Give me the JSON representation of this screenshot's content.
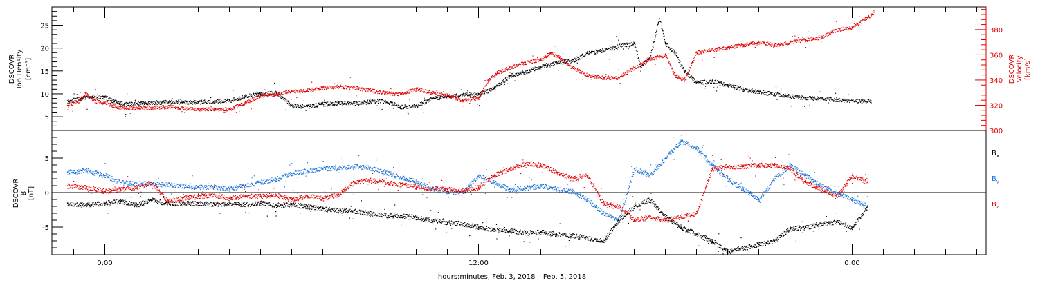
{
  "chart_data": [
    {
      "type": "scatter",
      "panel": "top",
      "ylabel_lines": [
        "DSCOVR",
        "Ion Density",
        "[cm⁻³]"
      ],
      "y2label_lines": [
        "DSCOVR",
        "Velocity",
        "[km/s]"
      ],
      "y_ticks": [
        5,
        10,
        15,
        20,
        25
      ],
      "y2_ticks": [
        300,
        320,
        340,
        360,
        380
      ],
      "ylim": [
        2,
        29
      ],
      "y2lim": [
        300,
        398
      ],
      "series": [
        {
          "color": "#000000",
          "axis": "left",
          "points": [
            [
              -1.2,
              8.5
            ],
            [
              -0.8,
              9.0
            ],
            [
              -0.4,
              9.5
            ],
            [
              0,
              9.3
            ],
            [
              0.3,
              8.3
            ],
            [
              0.7,
              7.8
            ],
            [
              1.2,
              8.0
            ],
            [
              1.8,
              8.2
            ],
            [
              2.5,
              8.3
            ],
            [
              3.0,
              8.2
            ],
            [
              3.5,
              8.4
            ],
            [
              4.0,
              8.6
            ],
            [
              4.5,
              9.5
            ],
            [
              5.0,
              10.0
            ],
            [
              5.5,
              10.3
            ],
            [
              6.0,
              7.5
            ],
            [
              6.5,
              7.3
            ],
            [
              7.0,
              7.8
            ],
            [
              7.5,
              8.0
            ],
            [
              8.0,
              8.0
            ],
            [
              8.5,
              8.3
            ],
            [
              9.0,
              8.5
            ],
            [
              9.5,
              7.2
            ],
            [
              10.0,
              7.5
            ],
            [
              10.5,
              9.0
            ],
            [
              11.0,
              9.5
            ],
            [
              11.5,
              9.8
            ],
            [
              12.0,
              10.0
            ],
            [
              12.5,
              11.2
            ],
            [
              13.0,
              14.0
            ],
            [
              13.5,
              14.8
            ],
            [
              14.0,
              16.0
            ],
            [
              14.5,
              17.0
            ],
            [
              15.0,
              17.2
            ],
            [
              15.5,
              19.0
            ],
            [
              16.0,
              19.5
            ],
            [
              16.5,
              20.5
            ],
            [
              17.0,
              21.0
            ],
            [
              17.2,
              16.0
            ],
            [
              17.5,
              18.0
            ],
            [
              17.8,
              26.5
            ],
            [
              18.0,
              21.0
            ],
            [
              18.3,
              19.0
            ],
            [
              18.6,
              15.0
            ],
            [
              19.0,
              12.5
            ],
            [
              19.5,
              12.8
            ],
            [
              20.0,
              12.0
            ],
            [
              20.5,
              11.0
            ],
            [
              21.0,
              10.5
            ],
            [
              21.5,
              10.0
            ],
            [
              22.0,
              9.5
            ],
            [
              22.5,
              9.2
            ],
            [
              23.0,
              9.0
            ],
            [
              23.5,
              8.8
            ],
            [
              24.0,
              8.5
            ],
            [
              24.6,
              8.5
            ]
          ]
        },
        {
          "color": "#e00000",
          "axis": "right",
          "points": [
            [
              -1.2,
              320
            ],
            [
              -0.8,
              324
            ],
            [
              -0.6,
              330
            ],
            [
              -0.4,
              324
            ],
            [
              0,
              322
            ],
            [
              0.5,
              318
            ],
            [
              1.0,
              318
            ],
            [
              1.5,
              318
            ],
            [
              2.0,
              319
            ],
            [
              2.5,
              318
            ],
            [
              3.0,
              317
            ],
            [
              3.5,
              317
            ],
            [
              4.0,
              317
            ],
            [
              4.5,
              322
            ],
            [
              5.0,
              328
            ],
            [
              5.5,
              329
            ],
            [
              6.0,
              331
            ],
            [
              6.5,
              332
            ],
            [
              7.0,
              334
            ],
            [
              7.5,
              335
            ],
            [
              8.0,
              334
            ],
            [
              8.5,
              332
            ],
            [
              9.0,
              330
            ],
            [
              9.5,
              329
            ],
            [
              10.0,
              333
            ],
            [
              10.5,
              330
            ],
            [
              11.0,
              328
            ],
            [
              11.5,
              324
            ],
            [
              12.0,
              326
            ],
            [
              12.3,
              340
            ],
            [
              12.6,
              346
            ],
            [
              13.0,
              350
            ],
            [
              13.5,
              354
            ],
            [
              14.0,
              356
            ],
            [
              14.3,
              362
            ],
            [
              14.6,
              358
            ],
            [
              15.0,
              350
            ],
            [
              15.5,
              344
            ],
            [
              16.0,
              342
            ],
            [
              16.5,
              342
            ],
            [
              17.0,
              350
            ],
            [
              17.5,
              357
            ],
            [
              18.0,
              360
            ],
            [
              18.3,
              344
            ],
            [
              18.6,
              340
            ],
            [
              19.0,
              362
            ],
            [
              19.5,
              364
            ],
            [
              20.0,
              366
            ],
            [
              20.5,
              368
            ],
            [
              21.0,
              370
            ],
            [
              21.5,
              368
            ],
            [
              22.0,
              370
            ],
            [
              22.5,
              372
            ],
            [
              23.0,
              374
            ],
            [
              23.5,
              380
            ],
            [
              24.0,
              382
            ],
            [
              24.5,
              390
            ],
            [
              24.7,
              394
            ]
          ]
        }
      ]
    },
    {
      "type": "scatter",
      "panel": "bottom",
      "ylabel_lines": [
        "DSCOVR",
        "B",
        "[nT]"
      ],
      "y_ticks": [
        -5,
        0,
        5
      ],
      "ylim": [
        -9,
        9
      ],
      "legend": [
        "B",
        "B",
        "B"
      ],
      "legend_subscripts": [
        "x",
        "y",
        "z"
      ],
      "x_ticks": [
        "0:00",
        "12:00",
        "0:00"
      ],
      "x_tick_hours": [
        0,
        12,
        24
      ],
      "xlabel": "hours:minutes, Feb.  3, 2018 – Feb.  5, 2018",
      "series": [
        {
          "name": "Bx",
          "color": "#000000",
          "points": [
            [
              -1.2,
              -1.5
            ],
            [
              -0.6,
              -1.8
            ],
            [
              0,
              -1.5
            ],
            [
              0.5,
              -1.2
            ],
            [
              1.0,
              -1.8
            ],
            [
              1.5,
              -1.0
            ],
            [
              2.0,
              -1.6
            ],
            [
              2.5,
              -1.5
            ],
            [
              3.0,
              -1.5
            ],
            [
              3.5,
              -1.6
            ],
            [
              4.0,
              -1.6
            ],
            [
              4.5,
              -1.7
            ],
            [
              5.0,
              -1.5
            ],
            [
              5.5,
              -1.8
            ],
            [
              6.0,
              -1.7
            ],
            [
              6.5,
              -2.0
            ],
            [
              7.0,
              -2.3
            ],
            [
              7.5,
              -2.6
            ],
            [
              8.0,
              -2.6
            ],
            [
              8.5,
              -3.0
            ],
            [
              9.0,
              -3.3
            ],
            [
              9.5,
              -3.3
            ],
            [
              10.0,
              -3.6
            ],
            [
              10.5,
              -4.0
            ],
            [
              11.0,
              -4.3
            ],
            [
              11.5,
              -4.5
            ],
            [
              12.0,
              -5.0
            ],
            [
              12.5,
              -5.3
            ],
            [
              13.0,
              -5.5
            ],
            [
              13.5,
              -5.8
            ],
            [
              14.0,
              -5.7
            ],
            [
              14.5,
              -6.0
            ],
            [
              15.0,
              -6.2
            ],
            [
              15.5,
              -6.5
            ],
            [
              16.0,
              -7.0
            ],
            [
              16.5,
              -4.0
            ],
            [
              17.0,
              -2.0
            ],
            [
              17.5,
              -1.0
            ],
            [
              18.0,
              -3.5
            ],
            [
              18.5,
              -5.0
            ],
            [
              19.0,
              -6.0
            ],
            [
              19.5,
              -7.0
            ],
            [
              20.0,
              -8.5
            ],
            [
              20.5,
              -8.0
            ],
            [
              21.0,
              -7.5
            ],
            [
              21.5,
              -7.0
            ],
            [
              22.0,
              -5.2
            ],
            [
              22.5,
              -5.0
            ],
            [
              23.0,
              -4.5
            ],
            [
              23.5,
              -4.2
            ],
            [
              24.0,
              -5.0
            ],
            [
              24.5,
              -2.0
            ]
          ]
        },
        {
          "name": "By",
          "color": "#1a73d8",
          "points": [
            [
              -1.2,
              3.0
            ],
            [
              -0.6,
              3.2
            ],
            [
              0,
              2.5
            ],
            [
              0.5,
              1.5
            ],
            [
              1.0,
              1.3
            ],
            [
              1.5,
              1.3
            ],
            [
              2.0,
              1.2
            ],
            [
              2.5,
              1.0
            ],
            [
              3.0,
              0.8
            ],
            [
              3.5,
              0.8
            ],
            [
              4.0,
              0.6
            ],
            [
              4.5,
              1.0
            ],
            [
              5.0,
              1.5
            ],
            [
              5.5,
              2.0
            ],
            [
              6.0,
              2.8
            ],
            [
              6.5,
              3.2
            ],
            [
              7.0,
              3.5
            ],
            [
              7.5,
              3.6
            ],
            [
              8.0,
              3.8
            ],
            [
              8.5,
              3.6
            ],
            [
              9.0,
              3.0
            ],
            [
              9.5,
              2.2
            ],
            [
              10.0,
              1.6
            ],
            [
              10.5,
              0.6
            ],
            [
              11.0,
              0.2
            ],
            [
              11.5,
              0.0
            ],
            [
              12.0,
              2.5
            ],
            [
              12.5,
              1.5
            ],
            [
              13.0,
              0.5
            ],
            [
              13.5,
              0.7
            ],
            [
              14.0,
              1.0
            ],
            [
              14.5,
              0.5
            ],
            [
              15.0,
              0.2
            ],
            [
              15.5,
              -1.0
            ],
            [
              16.0,
              -3.0
            ],
            [
              16.5,
              -4.0
            ],
            [
              17.0,
              3.5
            ],
            [
              17.5,
              2.5
            ],
            [
              18.0,
              5.0
            ],
            [
              18.5,
              7.5
            ],
            [
              19.0,
              6.5
            ],
            [
              19.5,
              4.0
            ],
            [
              20.0,
              2.0
            ],
            [
              20.5,
              0.5
            ],
            [
              21.0,
              -1.0
            ],
            [
              21.5,
              2.0
            ],
            [
              22.0,
              4.0
            ],
            [
              22.5,
              2.5
            ],
            [
              23.0,
              1.0
            ],
            [
              23.5,
              0.0
            ],
            [
              24.0,
              -1.0
            ],
            [
              24.5,
              -2.0
            ]
          ]
        },
        {
          "name": "Bz",
          "color": "#e00000",
          "points": [
            [
              -1.2,
              1.0
            ],
            [
              -0.6,
              0.8
            ],
            [
              0,
              0.2
            ],
            [
              0.5,
              0.5
            ],
            [
              1.0,
              0.8
            ],
            [
              1.5,
              1.5
            ],
            [
              2.0,
              -1.2
            ],
            [
              2.5,
              -0.8
            ],
            [
              3.0,
              -0.5
            ],
            [
              3.5,
              -0.3
            ],
            [
              4.0,
              -0.8
            ],
            [
              4.5,
              -0.5
            ],
            [
              5.0,
              -0.5
            ],
            [
              5.5,
              -0.3
            ],
            [
              6.0,
              -1.0
            ],
            [
              6.5,
              -0.5
            ],
            [
              7.0,
              -0.8
            ],
            [
              7.5,
              -0.2
            ],
            [
              8.0,
              1.5
            ],
            [
              8.5,
              1.8
            ],
            [
              9.0,
              1.5
            ],
            [
              9.5,
              1.2
            ],
            [
              10.0,
              0.8
            ],
            [
              10.5,
              0.6
            ],
            [
              11.0,
              0.5
            ],
            [
              11.5,
              0.3
            ],
            [
              12.0,
              0.8
            ],
            [
              12.5,
              2.5
            ],
            [
              13.0,
              3.5
            ],
            [
              13.5,
              4.2
            ],
            [
              14.0,
              4.0
            ],
            [
              14.5,
              3.0
            ],
            [
              15.0,
              2.0
            ],
            [
              15.5,
              2.5
            ],
            [
              16.0,
              -1.5
            ],
            [
              16.5,
              -2.0
            ],
            [
              17.0,
              -4.0
            ],
            [
              17.5,
              -3.5
            ],
            [
              18.0,
              -4.0
            ],
            [
              18.5,
              -3.5
            ],
            [
              19.0,
              -3.0
            ],
            [
              19.5,
              3.5
            ],
            [
              20.0,
              3.8
            ],
            [
              20.5,
              3.8
            ],
            [
              21.0,
              4.0
            ],
            [
              21.5,
              4.0
            ],
            [
              22.0,
              3.5
            ],
            [
              22.5,
              1.5
            ],
            [
              23.0,
              0.5
            ],
            [
              23.5,
              -0.5
            ],
            [
              24.0,
              2.5
            ],
            [
              24.5,
              1.5
            ]
          ]
        }
      ]
    }
  ],
  "colors": {
    "left_axis": "#000000",
    "right_axis": "#e00000",
    "bx": "#000000",
    "by": "#1a73d8",
    "bz": "#e00000"
  }
}
